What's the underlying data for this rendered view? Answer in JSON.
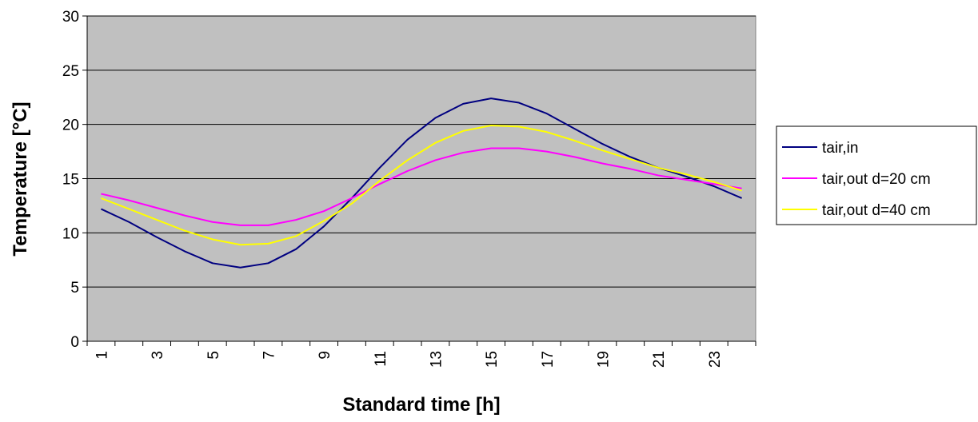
{
  "chart_data": {
    "type": "line",
    "xlabel": "Standard time [h]",
    "ylabel": "Temperature [°C]",
    "ylim": [
      0,
      30
    ],
    "yticks": [
      0,
      5,
      10,
      15,
      20,
      25,
      30
    ],
    "xlim": [
      0.5,
      24.5
    ],
    "xticklabels": [
      "1",
      "3",
      "5",
      "7",
      "9",
      "11",
      "13",
      "15",
      "17",
      "19",
      "21",
      "23"
    ],
    "x": [
      1,
      2,
      3,
      4,
      5,
      6,
      7,
      8,
      9,
      10,
      11,
      12,
      13,
      14,
      15,
      16,
      17,
      18,
      19,
      20,
      21,
      22,
      23,
      24
    ],
    "grid": "horizontal",
    "plot_background": "#c0c0c0",
    "legend_position": "right",
    "series": [
      {
        "name": "tair,in",
        "color": "#000080",
        "values": [
          12.2,
          11.0,
          9.6,
          8.3,
          7.2,
          6.8,
          7.2,
          8.5,
          10.6,
          13.2,
          16.0,
          18.6,
          20.6,
          21.9,
          22.4,
          22.0,
          21.0,
          19.6,
          18.2,
          17.0,
          16.0,
          15.2,
          14.3,
          13.2
        ]
      },
      {
        "name": "tair,out d=20 cm",
        "color": "#ff00ff",
        "values": [
          13.6,
          13.0,
          12.3,
          11.6,
          11.0,
          10.7,
          10.7,
          11.2,
          12.0,
          13.2,
          14.5,
          15.7,
          16.7,
          17.4,
          17.8,
          17.8,
          17.5,
          17.0,
          16.4,
          15.9,
          15.3,
          14.9,
          14.5,
          14.1
        ]
      },
      {
        "name": "tair,out d=40 cm",
        "color": "#ffff00",
        "values": [
          13.2,
          12.2,
          11.2,
          10.2,
          9.4,
          8.9,
          9.0,
          9.7,
          11.1,
          12.7,
          14.8,
          16.7,
          18.3,
          19.4,
          19.9,
          19.8,
          19.3,
          18.5,
          17.6,
          16.8,
          16.0,
          15.4,
          14.7,
          13.9
        ]
      }
    ]
  }
}
